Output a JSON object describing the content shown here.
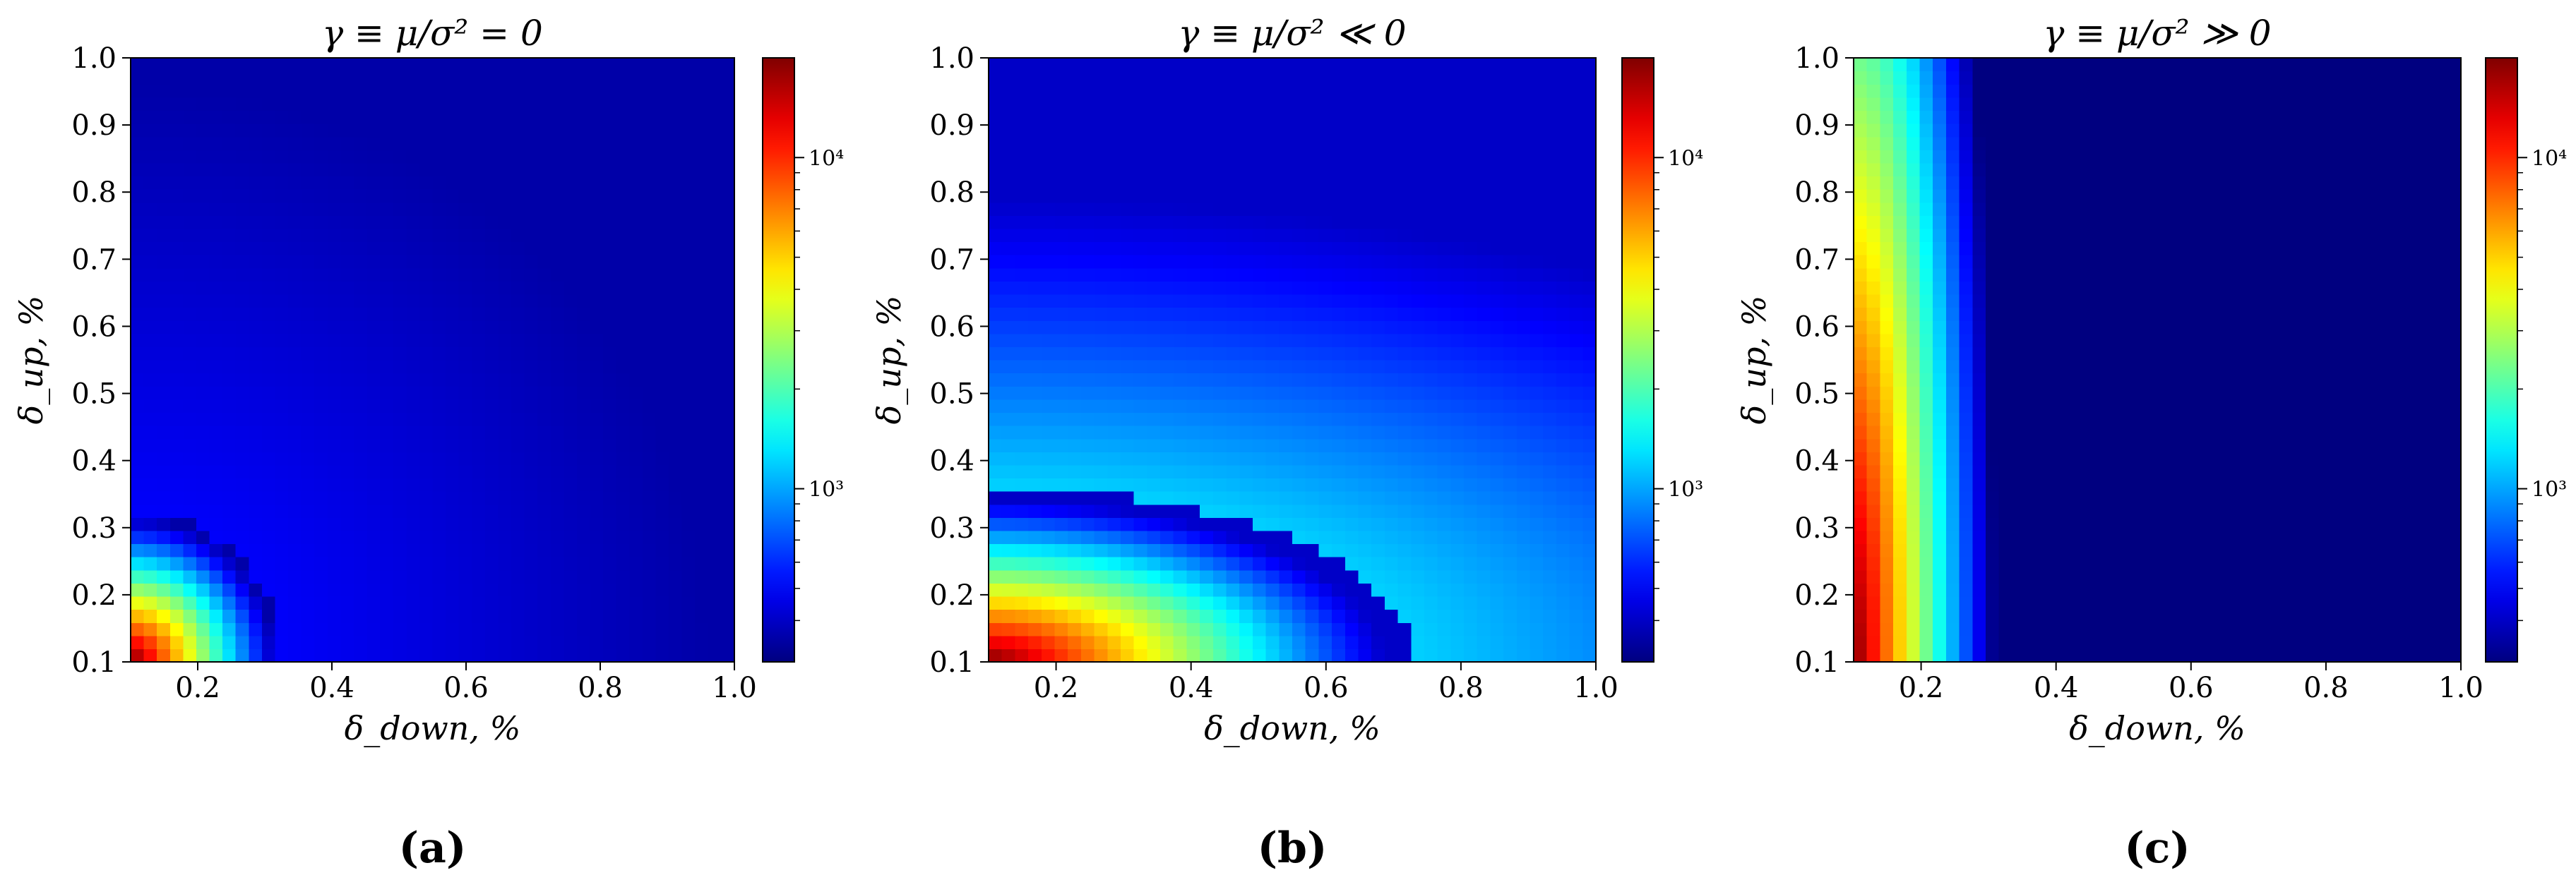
{
  "chart_data": [
    {
      "type": "heatmap",
      "title": "γ ≡ μ/σ² = 0",
      "xlabel": "δ_down, %",
      "ylabel": "δ_up, %",
      "xlim": [
        0.1,
        1.0
      ],
      "ylim": [
        0.1,
        1.0
      ],
      "xticks": [
        "0.2",
        "0.4",
        "0.6",
        "0.8",
        "1.0"
      ],
      "yticks": [
        "0.1",
        "0.2",
        "0.3",
        "0.4",
        "0.5",
        "0.6",
        "0.7",
        "0.8",
        "0.9",
        "1.0"
      ],
      "model": {
        "scale_x": 0.9,
        "scale_y": 0.9,
        "weight_x": 1.0,
        "weight_y": 1.0,
        "ramp": 0.25,
        "floor": 0.12,
        "min_value": 0.04
      },
      "colorbar": {
        "scale": "log",
        "range": [
          300,
          20000
        ],
        "tick_labels": [
          "10³",
          "10⁴"
        ],
        "tick_values": [
          1000,
          10000
        ]
      },
      "panel_label": "(a)"
    },
    {
      "type": "heatmap",
      "title": "γ ≡ μ/σ² ≪ 0",
      "xlabel": "δ_down, %",
      "ylabel": "δ_up, %",
      "xlim": [
        0.1,
        1.0
      ],
      "ylim": [
        0.1,
        1.0
      ],
      "xticks": [
        "0.2",
        "0.4",
        "0.6",
        "0.8",
        "1.0"
      ],
      "yticks": [
        "0.1",
        "0.2",
        "0.3",
        "0.4",
        "0.5",
        "0.6",
        "0.7",
        "0.8",
        "0.9",
        "1.0"
      ],
      "model": {
        "scale_x": 1.5,
        "scale_y": 0.62,
        "weight_x": 1.0,
        "weight_y": 1.0,
        "ramp": 0.42,
        "floor": 0.33,
        "min_value": 0.07
      },
      "colorbar": {
        "scale": "log",
        "range": [
          300,
          20000
        ],
        "tick_labels": [
          "10³",
          "10⁴"
        ],
        "tick_values": [
          1000,
          10000
        ]
      },
      "panel_label": "(b)"
    },
    {
      "type": "heatmap",
      "title": "γ ≡ μ/σ² ≫ 0",
      "xlabel": "δ_down, %",
      "ylabel": "δ_up, %",
      "xlim": [
        0.1,
        1.0
      ],
      "ylim": [
        0.1,
        1.0
      ],
      "xticks": [
        "0.2",
        "0.4",
        "0.6",
        "0.8",
        "1.0"
      ],
      "yticks": [
        "0.1",
        "0.2",
        "0.3",
        "0.4",
        "0.5",
        "0.6",
        "0.7",
        "0.8",
        "0.9",
        "1.0"
      ],
      "model": {
        "scale_x": 0.95,
        "scale_y": 0.95,
        "weight_x": 1.0,
        "weight_y": 0.12,
        "ramp": 0.22,
        "floor": 0.0,
        "min_value": 0.0
      },
      "colorbar": {
        "scale": "log",
        "range": [
          300,
          20000
        ],
        "tick_labels": [
          "10³",
          "10⁴"
        ],
        "tick_values": [
          1000,
          10000
        ]
      },
      "panel_label": "(c)"
    }
  ]
}
